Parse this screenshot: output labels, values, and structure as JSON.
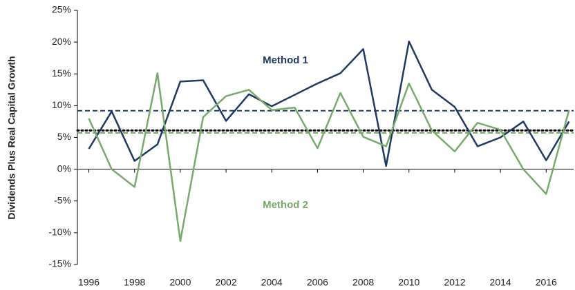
{
  "chart_data": {
    "type": "line",
    "y_label": "Dividends Plus Real Capital Growth",
    "x": [
      1996,
      1997,
      1998,
      1999,
      2000,
      2001,
      2002,
      2003,
      2004,
      2005,
      2006,
      2007,
      2008,
      2009,
      2010,
      2011,
      2012,
      2013,
      2014,
      2015,
      2016,
      2017
    ],
    "series": [
      {
        "name": "Method 1",
        "color": "#1f3864",
        "values": [
          3.2,
          9.1,
          1.3,
          3.9,
          13.8,
          14.0,
          7.6,
          11.8,
          9.9,
          11.7,
          13.5,
          15.1,
          18.9,
          0.5,
          20.1,
          12.5,
          9.8,
          3.6,
          5.0,
          7.5,
          1.4,
          7.5
        ]
      },
      {
        "name": "Method 2",
        "color": "#77aa6b",
        "values": [
          8.0,
          0,
          -2.8,
          15.1,
          -11.3,
          8.2,
          11.5,
          12.5,
          9.3,
          9.7,
          3.3,
          12.0,
          5.1,
          3.6,
          13.5,
          6.1,
          2.8,
          7.3,
          6.2,
          0,
          -3.9,
          9.3
        ]
      }
    ],
    "reference_lines": [
      {
        "value": 9.2,
        "color": "#1f3864",
        "style": "dashed"
      },
      {
        "value": 5.7,
        "color": "#77aa6b",
        "style": "dashed"
      },
      {
        "value": 6.1,
        "color": "#000000",
        "style": "dotted"
      }
    ],
    "xlim": [
      1995.5,
      2017.2
    ],
    "xticks": [
      1996,
      1998,
      2000,
      2002,
      2004,
      2006,
      2008,
      2010,
      2012,
      2014,
      2016
    ],
    "ylim": [
      -15,
      25
    ],
    "yticks": [
      {
        "value": -15,
        "label": "-15%"
      },
      {
        "value": -10,
        "label": "-10%"
      },
      {
        "value": -5,
        "label": "-5%"
      },
      {
        "value": 0,
        "label": "0%"
      },
      {
        "value": 5,
        "label": "5%"
      },
      {
        "value": 10,
        "label": "10%"
      },
      {
        "value": 15,
        "label": "15%"
      },
      {
        "value": 20,
        "label": "20%"
      },
      {
        "value": 25,
        "label": "25%"
      }
    ]
  }
}
